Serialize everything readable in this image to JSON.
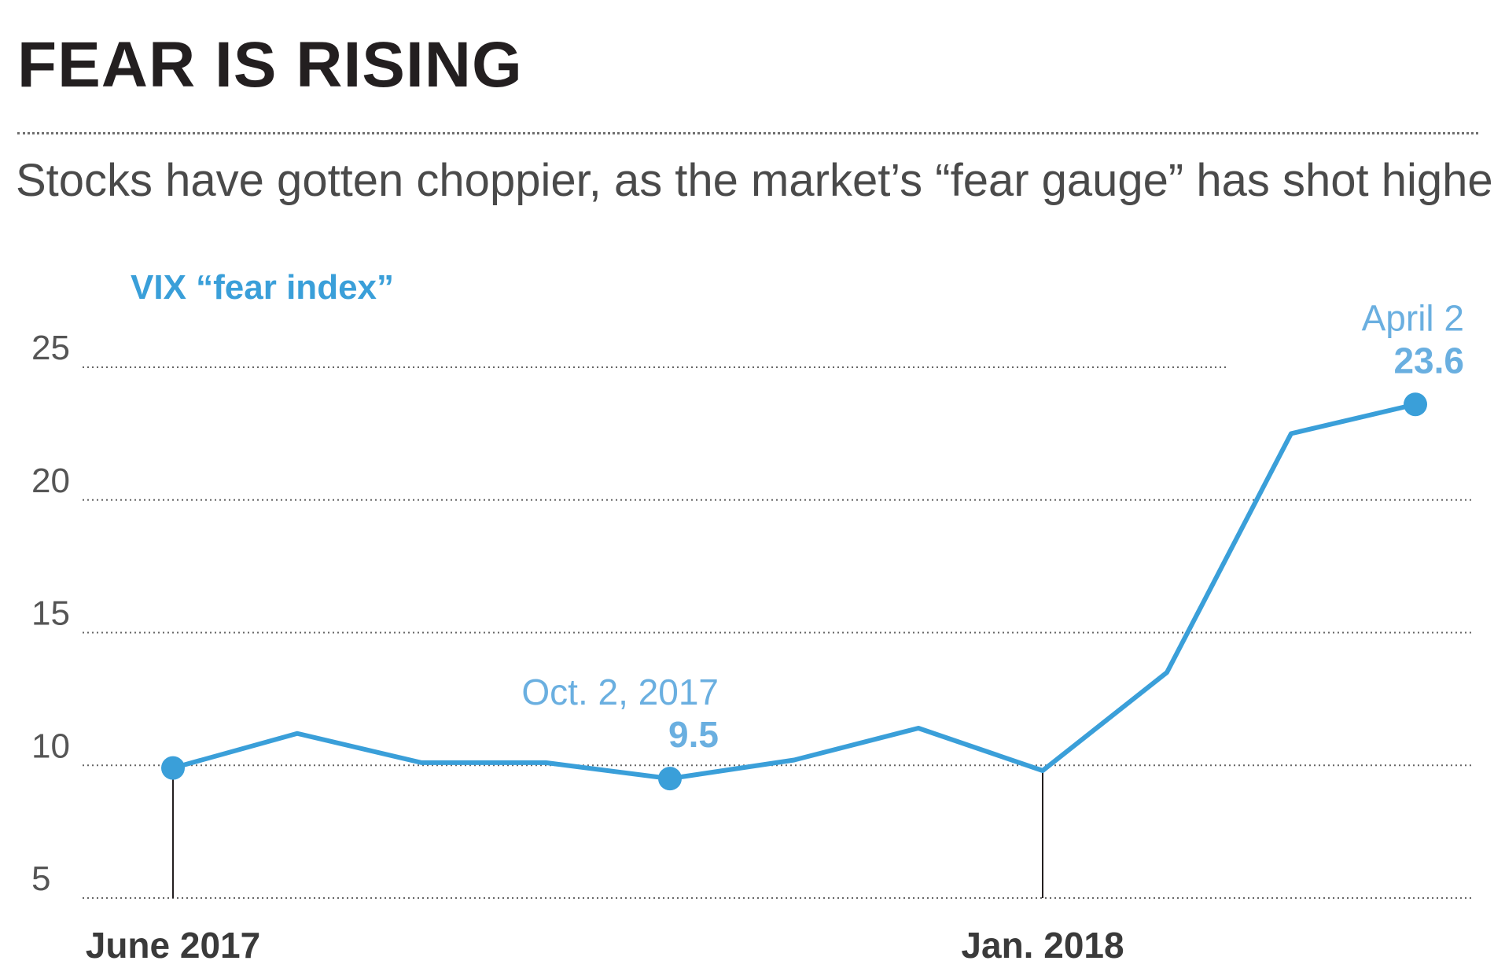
{
  "header": {
    "title": "FEAR IS RISING",
    "subtitle": "Stocks have gotten choppier, as the market’s “fear gauge” has shot higher."
  },
  "colors": {
    "series": "#3a9fd9",
    "annotation_light": "#6aafe0",
    "text_dark": "#231f20",
    "text_gray": "#555555",
    "grid": "#666666"
  },
  "chart_data": {
    "type": "line",
    "series_label": "VIX “fear index”",
    "x": [
      "2017-06",
      "2017-07",
      "2017-08",
      "2017-09",
      "2017-10",
      "2017-11",
      "2017-12",
      "2018-01",
      "2018-02",
      "2018-03",
      "2018-04"
    ],
    "x_tick_labels": [
      {
        "x": "2017-06",
        "label": "June 2017"
      },
      {
        "x": "2018-01",
        "label": "Jan. 2018"
      }
    ],
    "series": [
      {
        "values": [
          9.9,
          11.2,
          10.1,
          10.1,
          9.5,
          10.2,
          11.4,
          9.8,
          13.5,
          22.5,
          23.6
        ]
      }
    ],
    "ylim": [
      5,
      25
    ],
    "y_ticks": [
      5,
      10,
      15,
      20,
      25
    ],
    "grid": "horizontal-dotted",
    "highlighted_points": [
      0,
      4,
      10
    ],
    "annotations": [
      {
        "point": 4,
        "label": "Oct. 2, 2017",
        "value": "9.5"
      },
      {
        "point": 10,
        "label": "April 2",
        "value": "23.6"
      }
    ]
  }
}
